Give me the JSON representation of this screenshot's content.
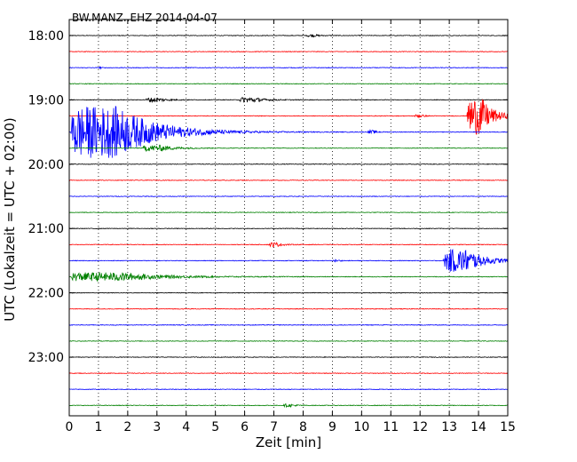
{
  "chart_data": {
    "type": "line",
    "title": "BW.MANZ..EHZ 2014-04-07",
    "xlabel": "Zeit  [min]",
    "ylabel": "UTC (Lokalzeit = UTC + 02:00)",
    "xlim": [
      0,
      15
    ],
    "x_ticks": [
      "0",
      "1",
      "2",
      "3",
      "4",
      "5",
      "6",
      "7",
      "8",
      "9",
      "10",
      "11",
      "12",
      "13",
      "14",
      "15"
    ],
    "y_ticks": [
      "18:00",
      "19:00",
      "20:00",
      "21:00",
      "22:00",
      "23:00"
    ],
    "grid": "vertical dotted",
    "trace_interval_min": 15,
    "trace_colors": [
      "#000000",
      "#ff0000",
      "#0000ff",
      "#008000"
    ],
    "series": [
      {
        "start": "18:00",
        "color": "#000000",
        "events": [
          {
            "t": 8.1,
            "amp": 0.15,
            "dur": 0.7
          }
        ]
      },
      {
        "start": "18:15",
        "color": "#ff0000",
        "events": []
      },
      {
        "start": "18:30",
        "color": "#0000ff",
        "events": [
          {
            "t": 1.0,
            "amp": 0.3,
            "dur": 0.1
          }
        ]
      },
      {
        "start": "18:45",
        "color": "#008000",
        "events": []
      },
      {
        "start": "19:00",
        "color": "#000000",
        "events": [
          {
            "t": 2.6,
            "amp": 0.25,
            "dur": 1.2
          },
          {
            "t": 5.8,
            "amp": 0.3,
            "dur": 1.4
          }
        ]
      },
      {
        "start": "19:15",
        "color": "#ff0000",
        "events": [
          {
            "t": 11.8,
            "amp": 0.2,
            "dur": 0.5
          },
          {
            "t": 13.6,
            "amp": 2.3,
            "dur": 1.4
          }
        ]
      },
      {
        "start": "19:30",
        "color": "#0000ff",
        "events": [
          {
            "t": 0.05,
            "amp": 3.2,
            "dur": 4.5
          },
          {
            "t": 10.2,
            "amp": 0.2,
            "dur": 0.5
          }
        ]
      },
      {
        "start": "19:45",
        "color": "#008000",
        "events": [
          {
            "t": 2.5,
            "amp": 0.35,
            "dur": 1.8
          }
        ]
      },
      {
        "start": "20:00",
        "color": "#000000",
        "events": []
      },
      {
        "start": "20:15",
        "color": "#ff0000",
        "events": []
      },
      {
        "start": "20:30",
        "color": "#0000ff",
        "events": []
      },
      {
        "start": "20:45",
        "color": "#008000",
        "events": []
      },
      {
        "start": "21:00",
        "color": "#000000",
        "events": []
      },
      {
        "start": "21:15",
        "color": "#ff0000",
        "events": [
          {
            "t": 6.8,
            "amp": 0.25,
            "dur": 0.8
          }
        ]
      },
      {
        "start": "21:30",
        "color": "#0000ff",
        "events": [
          {
            "t": 9.0,
            "amp": 0.12,
            "dur": 0.4
          },
          {
            "t": 12.8,
            "amp": 1.4,
            "dur": 2.2
          }
        ]
      },
      {
        "start": "21:45",
        "color": "#008000",
        "events": [
          {
            "t": 0.05,
            "amp": 0.5,
            "dur": 5.0
          }
        ]
      },
      {
        "start": "22:00",
        "color": "#000000",
        "events": []
      },
      {
        "start": "22:15",
        "color": "#ff0000",
        "events": []
      },
      {
        "start": "22:30",
        "color": "#0000ff",
        "events": []
      },
      {
        "start": "22:45",
        "color": "#008000",
        "events": []
      },
      {
        "start": "23:00",
        "color": "#000000",
        "events": []
      },
      {
        "start": "23:15",
        "color": "#ff0000",
        "events": []
      },
      {
        "start": "23:30",
        "color": "#0000ff",
        "events": []
      },
      {
        "start": "23:45",
        "color": "#008000",
        "events": [
          {
            "t": 7.3,
            "amp": 0.15,
            "dur": 0.8
          }
        ]
      }
    ]
  }
}
